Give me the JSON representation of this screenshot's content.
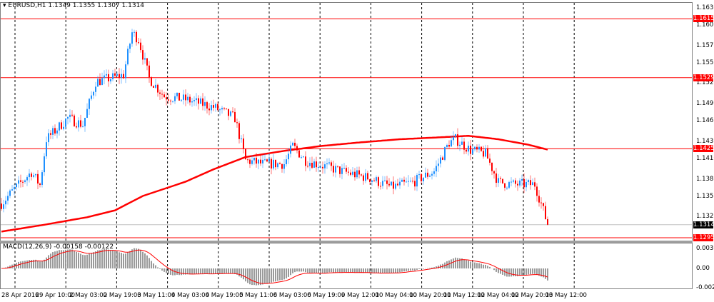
{
  "header": {
    "symbol": "EURUSD,H1",
    "open": "1.1349",
    "high": "1.1355",
    "low": "1.1307",
    "close": "1.1314",
    "menu_icon": "triangle-down-icon"
  },
  "macd_header": {
    "label": "MACD(12,26,9)",
    "main": "-0.00158",
    "signal": "-0.00122"
  },
  "colors": {
    "bull": "#1e90ff",
    "bear": "#ff0000",
    "ma": "#ff0000",
    "level": "#ff0000",
    "bid": "#c0c0c0",
    "grid": "#000000",
    "histogram": "#808080",
    "signal": "#ff0000"
  },
  "chart_data": {
    "type": "candlestick",
    "symbol": "EURUSD",
    "timeframe": "H1",
    "ylim": [
      1.1283,
      1.164
    ],
    "price_ticks": [
      "1.1630",
      "1.1605",
      "1.1575",
      "1.1550",
      "1.1520",
      "1.1490",
      "1.1465",
      "1.1435",
      "1.1410",
      "1.1380",
      "1.1355",
      "1.1325"
    ],
    "levels": [
      {
        "price": 1.1615,
        "label": "1.1615"
      },
      {
        "price": 1.1529,
        "label": "1.1529"
      },
      {
        "price": 1.1425,
        "label": "1.1425"
      },
      {
        "price": 1.1295,
        "label": "1.1295"
      }
    ],
    "bid": {
      "price": 1.1314,
      "label": "1.1314"
    },
    "time_labels": [
      "28 Apr 2016",
      "29 Apr 10:00",
      "2 May 03:00",
      "2 May 19:00",
      "3 May 11:00",
      "4 May 03:00",
      "4 May 19:00",
      "5 May 11:00",
      "6 May 03:00",
      "6 May 19:00",
      "9 May 12:00",
      "10 May 04:00",
      "10 May 20:00",
      "11 May 12:00",
      "12 May 04:00",
      "12 May 20:00",
      "13 May 12:00"
    ],
    "grid": "vertical-dashed",
    "close_path": [
      [
        0,
        1.1345
      ],
      [
        6,
        1.1366
      ],
      [
        14,
        1.1391
      ],
      [
        18,
        1.1372
      ],
      [
        21,
        1.1439
      ],
      [
        31,
        1.147
      ],
      [
        38,
        1.146
      ],
      [
        44,
        1.1523
      ],
      [
        57,
        1.1533
      ],
      [
        61,
        1.1595
      ],
      [
        64,
        1.1585
      ],
      [
        69,
        1.1528
      ],
      [
        76,
        1.1502
      ],
      [
        86,
        1.1497
      ],
      [
        99,
        1.1486
      ],
      [
        109,
        1.147
      ],
      [
        114,
        1.1408
      ],
      [
        122,
        1.1403
      ],
      [
        132,
        1.1403
      ],
      [
        136,
        1.1429
      ],
      [
        142,
        1.1408
      ],
      [
        159,
        1.1392
      ],
      [
        172,
        1.1382
      ],
      [
        182,
        1.1369
      ],
      [
        192,
        1.1376
      ],
      [
        202,
        1.1392
      ],
      [
        209,
        1.1434
      ],
      [
        212,
        1.1439
      ],
      [
        219,
        1.1423
      ],
      [
        226,
        1.1418
      ],
      [
        232,
        1.1376
      ],
      [
        239,
        1.1373
      ],
      [
        249,
        1.1373
      ],
      [
        252,
        1.1345
      ],
      [
        255,
        1.1314
      ]
    ],
    "ma_path": [
      [
        0,
        1.1304
      ],
      [
        20,
        1.1314
      ],
      [
        40,
        1.1325
      ],
      [
        53,
        1.1335
      ],
      [
        66,
        1.1356
      ],
      [
        86,
        1.1377
      ],
      [
        99,
        1.1395
      ],
      [
        114,
        1.1413
      ],
      [
        132,
        1.1422
      ],
      [
        149,
        1.1429
      ],
      [
        166,
        1.1434
      ],
      [
        186,
        1.1439
      ],
      [
        206,
        1.1442
      ],
      [
        218,
        1.1444
      ],
      [
        232,
        1.1439
      ],
      [
        246,
        1.1431
      ],
      [
        256,
        1.1423
      ]
    ],
    "macd": {
      "ylim": [
        -0.00269,
        0.00305
      ],
      "ticks": [
        "0.00305",
        "0.00",
        "-0.00269"
      ],
      "fast": 12,
      "slow": 26,
      "signal": 9
    }
  }
}
